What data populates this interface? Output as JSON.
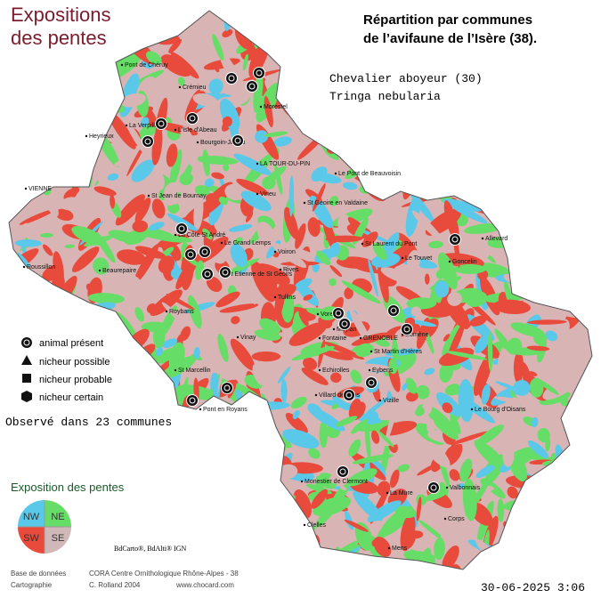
{
  "map_title": [
    "Expositions",
    "des pentes"
  ],
  "heading": [
    "Répartition par communes",
    "de l’avifaune de l’Isère (38)."
  ],
  "species": {
    "common": "Chevalier aboyeur  (30)",
    "latin": "Tringa nebularia"
  },
  "legend": [
    "animal présent",
    "nicheur possible",
    "nicheur probable",
    "nicheur certain"
  ],
  "observed": "Observé dans 23 communes",
  "slope_legend": {
    "title": "Exposition des pentes",
    "quadrants": [
      "NW",
      "NE",
      "SW",
      "SE"
    ]
  },
  "copyright": "BdCarto®, BdAlti® IGN",
  "credits": {
    "database_label": "Base de données",
    "database": "CORA Centre Ornithologique Rhône-Alpes - 38",
    "map_label": "Cartographie",
    "author": "C. Rolland 2004",
    "site": "www.chocard.com"
  },
  "date": "30-06-2025 3:06",
  "places": [
    "Pont de Chéruy",
    "Crémieu",
    "Morestel",
    "Heyrieux",
    "La Verpillière",
    "L'Isle d'Abeau",
    "Bourgoin-Jallieu",
    "LA TOUR-DU-PIN",
    "Le Pont de Beauvoisin",
    "VIENNE",
    "St Jean de Bournay",
    "Virieu",
    "St Geoire en Valdaine",
    "La Côte St André",
    "Le Grand Lemps",
    "St Etienne de St Geoirs",
    "Rives",
    "Voiron",
    "Roussillon",
    "Beaurepaire",
    "Tullins",
    "St Laurent du Pont",
    "Le Touvet",
    "Allevard",
    "Goncelin",
    "Roybans",
    "Voreppe",
    "Fontaine",
    "GRENOBLE",
    "Meylan",
    "Domène",
    "Vinay",
    "St Marcellin",
    "St Martin d'Hères",
    "Vizille",
    "Eybens",
    "Echirolles",
    "Pont en Royans",
    "Villard de Lans",
    "Le Bourg d'Oisans",
    "Monestier de Clermont",
    "La Mure",
    "Valbonnais",
    "Corps",
    "Clelles",
    "Mens"
  ]
}
